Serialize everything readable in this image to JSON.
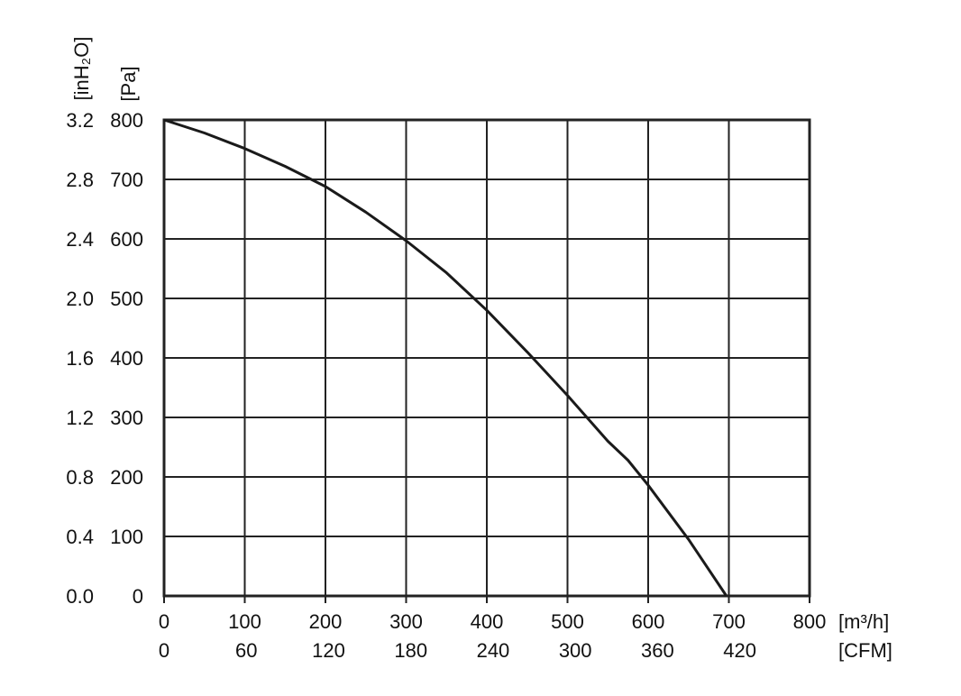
{
  "chart_data": {
    "type": "line",
    "x_unit": "[m³/h]",
    "x2_unit": "[CFM]",
    "y_unit": "[Pa]",
    "y2_unit": "[inH₂O]",
    "xlim": [
      0,
      800
    ],
    "ylim": [
      0,
      800
    ],
    "x_ticks": [
      0,
      100,
      200,
      300,
      400,
      500,
      600,
      700,
      800
    ],
    "x2_ticks": [
      0,
      60,
      120,
      180,
      240,
      300,
      360,
      420
    ],
    "y_ticks": [
      0,
      100,
      200,
      300,
      400,
      500,
      600,
      700,
      800
    ],
    "y2_ticks": [
      "0.0",
      "0.4",
      "0.8",
      "1.2",
      "1.6",
      "2.0",
      "2.4",
      "2.8",
      "3.2"
    ],
    "grid": true,
    "series": [
      {
        "x": [
          0,
          50,
          100,
          150,
          200,
          250,
          300,
          350,
          400,
          450,
          500,
          550,
          575,
          600,
          650,
          697
        ],
        "y": [
          800,
          778,
          752,
          722,
          688,
          645,
          597,
          543,
          480,
          410,
          337,
          260,
          228,
          186,
          95,
          0
        ]
      }
    ],
    "color": "#1a1a1a"
  }
}
